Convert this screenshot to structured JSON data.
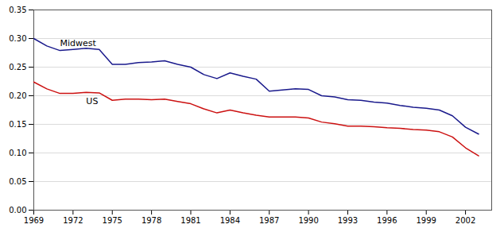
{
  "chart_data": {
    "type": "line",
    "x": [
      1969,
      1970,
      1971,
      1972,
      1973,
      1974,
      1975,
      1976,
      1977,
      1978,
      1979,
      1980,
      1981,
      1982,
      1983,
      1984,
      1985,
      1986,
      1987,
      1988,
      1989,
      1990,
      1991,
      1992,
      1993,
      1994,
      1995,
      1996,
      1997,
      1998,
      1999,
      2000,
      2001,
      2002,
      2003
    ],
    "series": [
      {
        "name": "Midwest",
        "color": "#1a1a8c",
        "values": [
          0.3,
          0.287,
          0.279,
          0.281,
          0.283,
          0.281,
          0.255,
          0.255,
          0.258,
          0.259,
          0.261,
          0.255,
          0.25,
          0.237,
          0.23,
          0.24,
          0.234,
          0.229,
          0.208,
          0.21,
          0.212,
          0.211,
          0.2,
          0.198,
          0.193,
          0.192,
          0.189,
          0.187,
          0.183,
          0.18,
          0.178,
          0.175,
          0.165,
          0.145,
          0.133
        ]
      },
      {
        "name": "US",
        "color": "#cc1111",
        "values": [
          0.224,
          0.212,
          0.204,
          0.204,
          0.206,
          0.205,
          0.192,
          0.194,
          0.194,
          0.193,
          0.194,
          0.19,
          0.186,
          0.177,
          0.17,
          0.175,
          0.17,
          0.166,
          0.163,
          0.163,
          0.163,
          0.161,
          0.154,
          0.151,
          0.147,
          0.147,
          0.146,
          0.144,
          0.143,
          0.141,
          0.14,
          0.137,
          0.128,
          0.109,
          0.095
        ]
      }
    ],
    "xlim": [
      1969,
      2004
    ],
    "xticks": [
      1969,
      1972,
      1975,
      1978,
      1981,
      1984,
      1987,
      1990,
      1993,
      1996,
      1999,
      2002
    ],
    "ylim": [
      0,
      0.35
    ],
    "yticks": [
      {
        "value": 0,
        "label": "0.00"
      },
      {
        "value": 0.05,
        "label": "0.05"
      },
      {
        "value": 0.1,
        "label": "0.10"
      },
      {
        "value": 0.15,
        "label": "0.15"
      },
      {
        "value": 0.2,
        "label": "0.20"
      },
      {
        "value": 0.25,
        "label": "0.25"
      },
      {
        "value": 0.3,
        "label": "0.30"
      },
      {
        "value": 0.35,
        "label": "0.35"
      }
    ],
    "grid": true
  }
}
